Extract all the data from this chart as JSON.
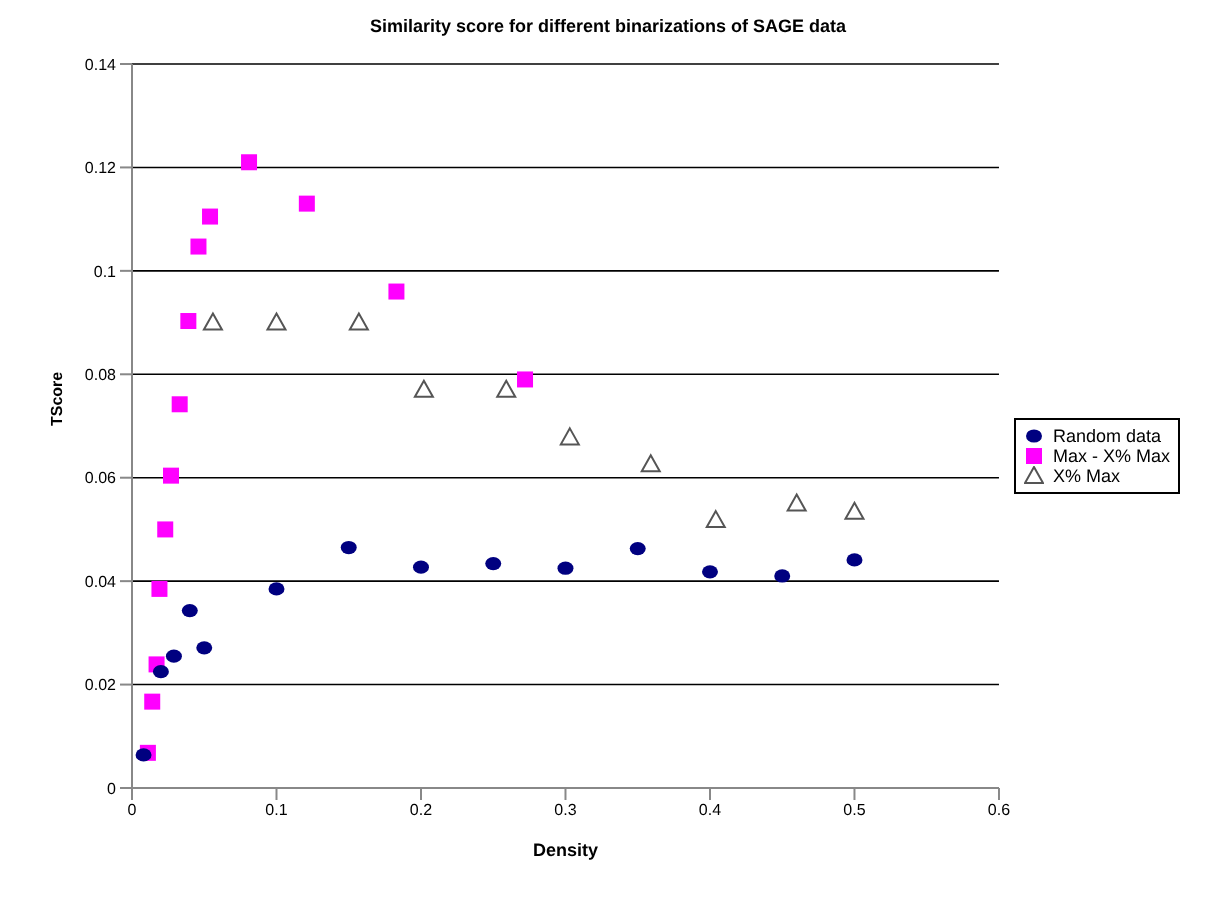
{
  "chart_data": {
    "type": "scatter",
    "title": "Similarity score for different binarizations of SAGE data",
    "xlabel": "Density",
    "ylabel": "TScore",
    "xlim": [
      0,
      0.6
    ],
    "xticks": [
      0,
      0.1,
      0.2,
      0.3,
      0.4,
      0.5,
      0.6
    ],
    "ylim": [
      0,
      0.14
    ],
    "yticks": [
      0,
      0.02,
      0.04,
      0.06,
      0.08,
      0.1,
      0.12,
      0.14
    ],
    "grid": "y",
    "legend": "right",
    "series": [
      {
        "name": "Random data",
        "color": "#000080",
        "marker": "circle",
        "x": [
          0.008,
          0.02,
          0.029,
          0.04,
          0.05,
          0.1,
          0.15,
          0.2,
          0.25,
          0.3,
          0.35,
          0.4,
          0.45,
          0.5
        ],
        "values": [
          0.0064,
          0.0225,
          0.0255,
          0.0343,
          0.0271,
          0.0385,
          0.0465,
          0.0427,
          0.0434,
          0.0425,
          0.0463,
          0.0418,
          0.041,
          0.0441
        ]
      },
      {
        "name": "Max - X% Max",
        "color": "#ff00ff",
        "marker": "square",
        "x": [
          0.011,
          0.014,
          0.017,
          0.019,
          0.023,
          0.027,
          0.033,
          0.039,
          0.046,
          0.054,
          0.081,
          0.121,
          0.183,
          0.272
        ],
        "values": [
          0.0068,
          0.0167,
          0.0239,
          0.0385,
          0.05,
          0.0604,
          0.0742,
          0.0903,
          0.1047,
          0.1105,
          0.121,
          0.113,
          0.096,
          0.079
        ]
      },
      {
        "name": "X% Max",
        "color": "#555555",
        "marker": "triangle",
        "x": [
          0.056,
          0.1,
          0.157,
          0.202,
          0.259,
          0.303,
          0.359,
          0.404,
          0.46,
          0.5
        ],
        "values": [
          0.09,
          0.09,
          0.09,
          0.077,
          0.077,
          0.0678,
          0.0626,
          0.0518,
          0.055,
          0.0534
        ]
      }
    ]
  }
}
